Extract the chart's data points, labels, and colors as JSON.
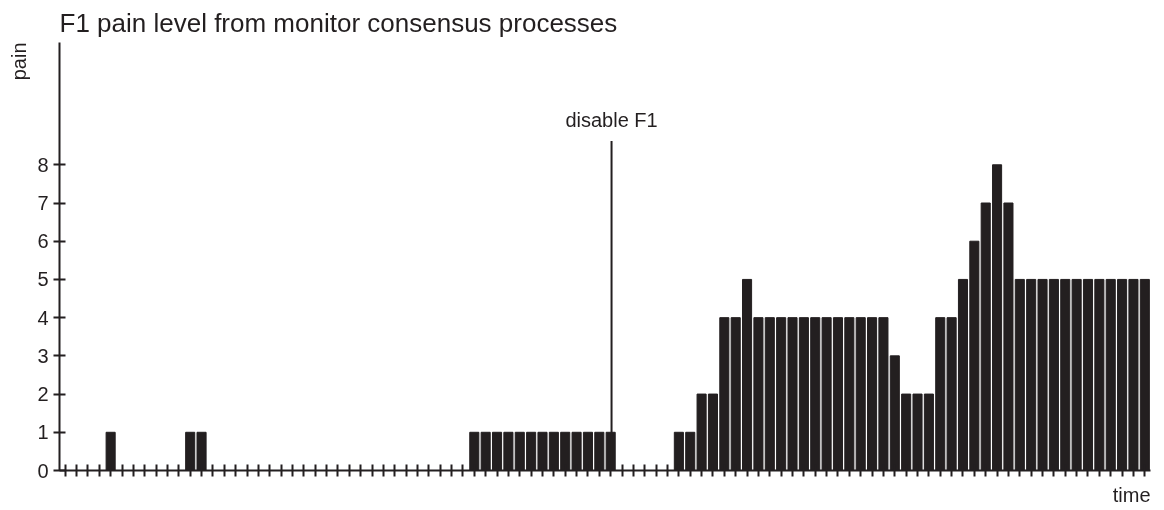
{
  "chart_data": {
    "type": "bar",
    "title": "F1 pain level from monitor consensus processes",
    "xlabel": "time",
    "ylabel": "pain",
    "categories": [
      null,
      null,
      null,
      null,
      null,
      null,
      null,
      null,
      null,
      null,
      null,
      null,
      null,
      null,
      null,
      null,
      null,
      null,
      null,
      null,
      null,
      null,
      null,
      null,
      null,
      null,
      null,
      null,
      null,
      null,
      null,
      null,
      null,
      null,
      null,
      null,
      null,
      null,
      null,
      null,
      null,
      null,
      null,
      null,
      null,
      null,
      null,
      null,
      null,
      null,
      null,
      null,
      null,
      null,
      null,
      null,
      null,
      null,
      null,
      null,
      null,
      null,
      null,
      null,
      null,
      null,
      null,
      null,
      null,
      null,
      null,
      null,
      null,
      null,
      null,
      null,
      null,
      null,
      null,
      null,
      null,
      null,
      null,
      null,
      null,
      null,
      null,
      null,
      null,
      null,
      null,
      null,
      null,
      null,
      null,
      null
    ],
    "values": [
      0,
      0,
      0,
      0,
      1,
      0,
      0,
      0,
      0,
      0,
      0,
      1,
      1,
      0,
      0,
      0,
      0,
      0,
      0,
      0,
      0,
      0,
      0,
      0,
      0,
      0,
      0,
      0,
      0,
      0,
      0,
      0,
      0,
      0,
      0,
      0,
      1,
      1,
      1,
      1,
      1,
      1,
      1,
      1,
      1,
      1,
      1,
      1,
      1,
      0,
      0,
      0,
      0,
      0,
      1,
      1,
      2,
      2,
      4,
      4,
      5,
      4,
      4,
      4,
      4,
      4,
      4,
      4,
      4,
      4,
      4,
      4,
      4,
      3,
      2,
      2,
      2,
      4,
      4,
      5,
      6,
      7,
      8,
      7,
      5,
      5,
      5,
      5,
      5,
      5,
      5,
      5,
      5,
      5,
      5,
      5
    ],
    "color": "#231f20",
    "ylim": [
      0,
      11.2
    ],
    "yticks": [
      0,
      1,
      2,
      3,
      4,
      5,
      6,
      7,
      8
    ],
    "annotations": [
      "disable F1"
    ],
    "tick_labels": "y"
  }
}
